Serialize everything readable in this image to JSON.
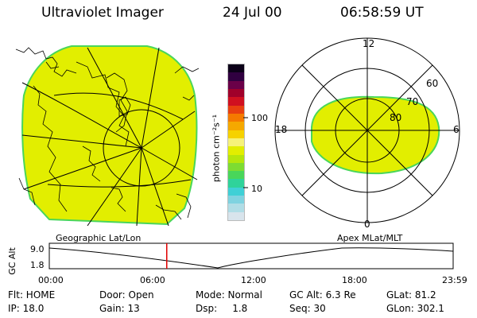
{
  "header": {
    "instrument": "Ultraviolet Imager",
    "date": "24 Jul 00",
    "time": "06:58:59 UT"
  },
  "colorbar": {
    "unit_label": "photon cm⁻²s⁻¹",
    "ticks": [
      "100",
      "10"
    ],
    "colors": [
      "#d8e4ec",
      "#b0dde6",
      "#7fd3e0",
      "#3fd0d6",
      "#2fd39a",
      "#49d65a",
      "#7ddc32",
      "#b5e60c",
      "#e2ee00",
      "#f6f27a",
      "#f6d200",
      "#f5a800",
      "#f57a00",
      "#e84010",
      "#d01020",
      "#a0002a",
      "#6a0048",
      "#300040",
      "#0c0018"
    ]
  },
  "polar_plot": {
    "mlt_labels": [
      "12",
      "18",
      "6",
      "0"
    ],
    "lat_labels": [
      "60",
      "70",
      "80"
    ]
  },
  "labels": {
    "left_projection": "Geographic Lat/Lon",
    "right_projection": "Apex MLat/MLT"
  },
  "altitude_plot": {
    "axis_label": "GC Alt",
    "y_ticks": [
      "9.0",
      "1.8"
    ],
    "x_ticks": [
      "00:00",
      "06:00",
      "12:00",
      "18:00",
      "23:59"
    ],
    "current_time_marker_hour": 6.98,
    "marker_color": "#e00000"
  },
  "status": {
    "flt": "Flt: HOME",
    "door": "Door: Open",
    "mode": "Mode: Normal",
    "gc_alt": "GC Alt: 6.3 Re",
    "glat": "GLat: 81.2",
    "ip": "IP: 18.0",
    "gain": "Gain: 13",
    "dsp": "Dsp:     1.8",
    "seq": "Seq: 30",
    "glon": "GLon: 302.1"
  },
  "palette": {
    "image_fill": "#e2ee00",
    "image_edge": "#49d65a"
  }
}
